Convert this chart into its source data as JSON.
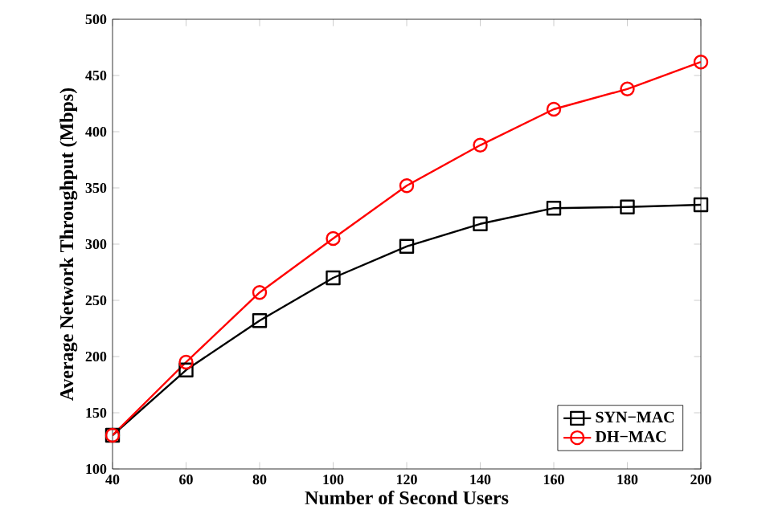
{
  "chart_data": {
    "type": "line",
    "xlabel": "Number of Second Users",
    "ylabel": "Average Network Throughput (Mbps)",
    "x": [
      40,
      60,
      80,
      100,
      120,
      140,
      160,
      180,
      200
    ],
    "series": [
      {
        "name": "SYN−MAC",
        "color": "#000000",
        "marker": "square",
        "values": [
          130,
          188,
          232,
          270,
          298,
          318,
          332,
          333,
          335
        ]
      },
      {
        "name": "DH−MAC",
        "color": "#ff0000",
        "marker": "circle",
        "values": [
          130,
          195,
          257,
          305,
          352,
          388,
          420,
          438,
          462
        ]
      }
    ],
    "xlim": [
      40,
      200
    ],
    "ylim": [
      100,
      500
    ],
    "xticks": [
      40,
      60,
      80,
      100,
      120,
      140,
      160,
      180,
      200
    ],
    "yticks": [
      100,
      150,
      200,
      250,
      300,
      350,
      400,
      450,
      500
    ],
    "grid": false,
    "legend": "bottom right",
    "line_style": "solid"
  }
}
